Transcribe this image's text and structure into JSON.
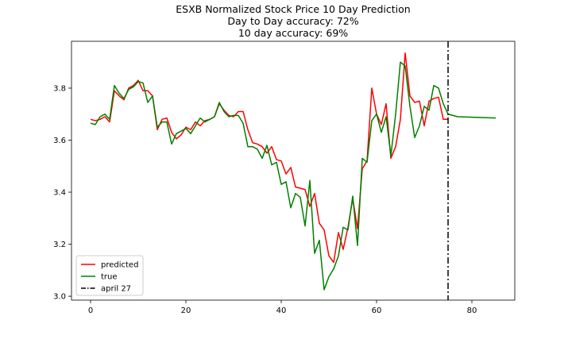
{
  "chart_data": {
    "type": "line",
    "title_lines": [
      "ESXB Normalized Stock Price 10 Day Prediction",
      "Day to Day accuracy: 72%",
      "10 day accuracy: 69%"
    ],
    "xlabel": "",
    "ylabel": "",
    "xlim": [
      -4,
      89
    ],
    "ylim": [
      2.985,
      3.98
    ],
    "xticks": [
      0,
      20,
      40,
      60,
      80
    ],
    "yticks": [
      3.0,
      3.2,
      3.4,
      3.6,
      3.8
    ],
    "grid": false,
    "legend_position": "lower-left",
    "series": [
      {
        "name": "predicted",
        "color": "#ff0000",
        "x": [
          0,
          1,
          2,
          3,
          4,
          5,
          6,
          7,
          8,
          9,
          10,
          11,
          12,
          13,
          14,
          15,
          16,
          17,
          18,
          19,
          20,
          21,
          22,
          23,
          24,
          25,
          26,
          27,
          28,
          29,
          30,
          31,
          32,
          33,
          34,
          35,
          36,
          37,
          38,
          39,
          40,
          41,
          42,
          43,
          44,
          45,
          46,
          47,
          48,
          49,
          50,
          51,
          52,
          53,
          54,
          55,
          56,
          57,
          58,
          59,
          60,
          61,
          62,
          63,
          64,
          65,
          66,
          67,
          68,
          69,
          70,
          71,
          72,
          73,
          74,
          75
        ],
        "values": [
          3.68,
          3.675,
          3.68,
          3.69,
          3.67,
          3.79,
          3.77,
          3.755,
          3.8,
          3.81,
          3.83,
          3.79,
          3.79,
          3.77,
          3.64,
          3.68,
          3.685,
          3.63,
          3.605,
          3.62,
          3.65,
          3.64,
          3.67,
          3.655,
          3.675,
          3.68,
          3.69,
          3.74,
          3.715,
          3.695,
          3.69,
          3.71,
          3.71,
          3.64,
          3.59,
          3.585,
          3.575,
          3.55,
          3.575,
          3.525,
          3.52,
          3.47,
          3.495,
          3.42,
          3.415,
          3.41,
          3.345,
          3.395,
          3.28,
          3.255,
          3.155,
          3.13,
          3.245,
          3.18,
          3.265,
          3.375,
          3.26,
          3.49,
          3.52,
          3.8,
          3.7,
          3.66,
          3.74,
          3.53,
          3.575,
          3.68,
          3.935,
          3.77,
          3.745,
          3.75,
          3.655,
          3.75,
          3.76,
          3.765,
          3.68,
          3.68
        ]
      },
      {
        "name": "true",
        "color": "#008000",
        "x": [
          0,
          1,
          2,
          3,
          4,
          5,
          6,
          7,
          8,
          9,
          10,
          11,
          12,
          13,
          14,
          15,
          16,
          17,
          18,
          19,
          20,
          21,
          22,
          23,
          24,
          25,
          26,
          27,
          28,
          29,
          30,
          31,
          32,
          33,
          34,
          35,
          36,
          37,
          38,
          39,
          40,
          41,
          42,
          43,
          44,
          45,
          46,
          47,
          48,
          49,
          50,
          51,
          52,
          53,
          54,
          55,
          56,
          57,
          58,
          59,
          60,
          61,
          62,
          63,
          64,
          65,
          66,
          67,
          68,
          69,
          70,
          71,
          72,
          73,
          74,
          75,
          77,
          80,
          85
        ],
        "values": [
          3.665,
          3.66,
          3.69,
          3.7,
          3.68,
          3.81,
          3.78,
          3.76,
          3.795,
          3.805,
          3.825,
          3.82,
          3.745,
          3.77,
          3.65,
          3.67,
          3.67,
          3.585,
          3.625,
          3.635,
          3.645,
          3.625,
          3.655,
          3.685,
          3.67,
          3.68,
          3.69,
          3.745,
          3.71,
          3.69,
          3.695,
          3.695,
          3.665,
          3.575,
          3.575,
          3.565,
          3.53,
          3.58,
          3.505,
          3.515,
          3.43,
          3.44,
          3.34,
          3.395,
          3.38,
          3.27,
          3.445,
          3.165,
          3.215,
          3.025,
          3.075,
          3.105,
          3.155,
          3.265,
          3.255,
          3.385,
          3.195,
          3.53,
          3.515,
          3.675,
          3.7,
          3.63,
          3.69,
          3.54,
          3.7,
          3.9,
          3.885,
          3.73,
          3.61,
          3.655,
          3.73,
          3.715,
          3.81,
          3.8,
          3.74,
          3.7,
          3.69,
          3.688,
          3.685
        ]
      }
    ],
    "vline": {
      "name": "april 27",
      "x": 75,
      "color": "#000000",
      "style": "dash-dot"
    }
  }
}
